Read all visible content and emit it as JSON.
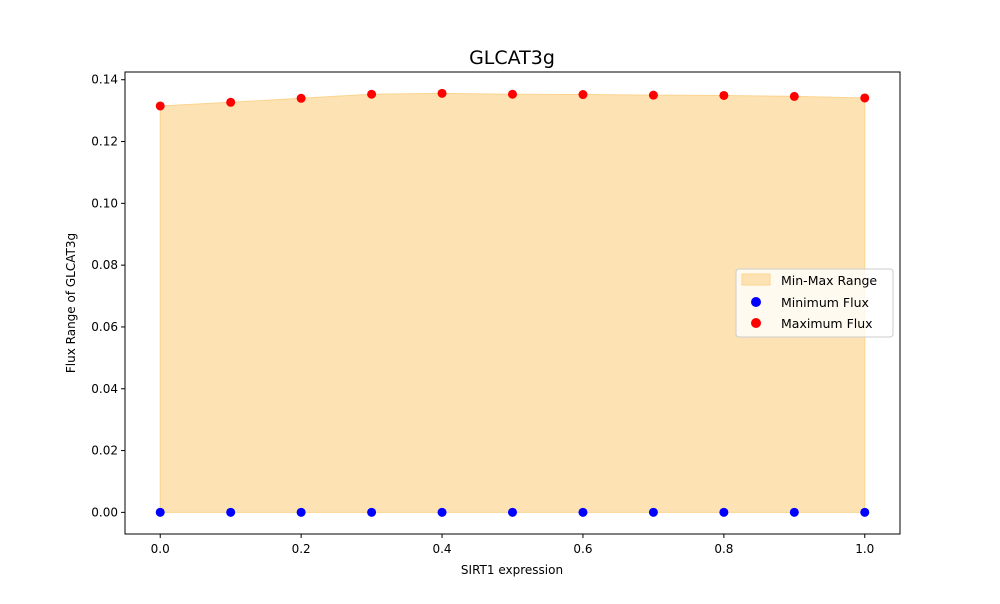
{
  "chart_data": {
    "type": "scatter",
    "title": "GLCAT3g",
    "xlabel": "SIRT1 expression",
    "ylabel": "Flux Range of GLCAT3g",
    "xlim": [
      -0.05,
      1.05
    ],
    "ylim": [
      -0.007,
      0.1425
    ],
    "x_ticks": [
      "0.0",
      "0.2",
      "0.4",
      "0.6",
      "0.8",
      "1.0"
    ],
    "y_ticks": [
      "0.00",
      "0.02",
      "0.04",
      "0.06",
      "0.08",
      "0.10",
      "0.12",
      "0.14"
    ],
    "x": [
      0.0,
      0.1,
      0.2,
      0.3,
      0.4,
      0.5,
      0.6,
      0.7,
      0.8,
      0.9,
      1.0
    ],
    "series": [
      {
        "name": "Min-Max Range",
        "kind": "fill_between",
        "color": "#fde3b3",
        "edge_color": "#fbd48e"
      },
      {
        "name": "Minimum Flux",
        "kind": "scatter",
        "color": "#0000ff",
        "values": [
          0,
          0,
          0,
          0,
          0,
          0,
          0,
          0,
          0,
          0,
          0
        ]
      },
      {
        "name": "Maximum Flux",
        "kind": "scatter",
        "color": "#ff0000",
        "values": [
          0.1315,
          0.1327,
          0.134,
          0.1353,
          0.1356,
          0.1353,
          0.1352,
          0.135,
          0.1349,
          0.1346,
          0.1341
        ]
      }
    ],
    "legend_position": "center-right",
    "grid": false
  }
}
